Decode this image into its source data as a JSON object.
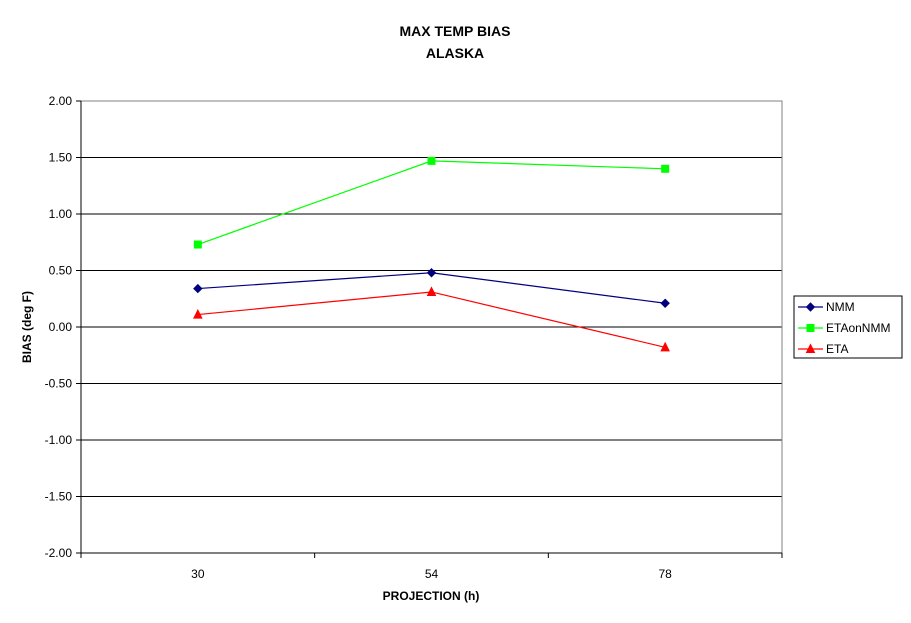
{
  "chart_data": {
    "type": "line",
    "title": [
      "MAX TEMP BIAS",
      "ALASKA"
    ],
    "xlabel": "PROJECTION (h)",
    "ylabel": "BIAS (deg F)",
    "categories": [
      "30",
      "54",
      "78"
    ],
    "ylim": [
      -2.0,
      2.0
    ],
    "yticks": [
      -2.0,
      -1.5,
      -1.0,
      -0.5,
      0.0,
      0.5,
      1.0,
      1.5,
      2.0
    ],
    "ytick_labels": [
      "-2.00",
      "-1.50",
      "-1.00",
      "-0.50",
      "0.00",
      "0.50",
      "1.00",
      "1.50",
      "2.00"
    ],
    "grid": true,
    "legend_position": "right",
    "series": [
      {
        "name": "NMM",
        "values": [
          0.34,
          0.48,
          0.21
        ],
        "color": "#000080",
        "marker": "diamond"
      },
      {
        "name": "ETAonNMM",
        "values": [
          0.73,
          1.47,
          1.4
        ],
        "color": "#00ff00",
        "marker": "square"
      },
      {
        "name": "ETA",
        "values": [
          0.11,
          0.31,
          -0.18
        ],
        "color": "#ff0000",
        "marker": "triangle"
      }
    ]
  }
}
